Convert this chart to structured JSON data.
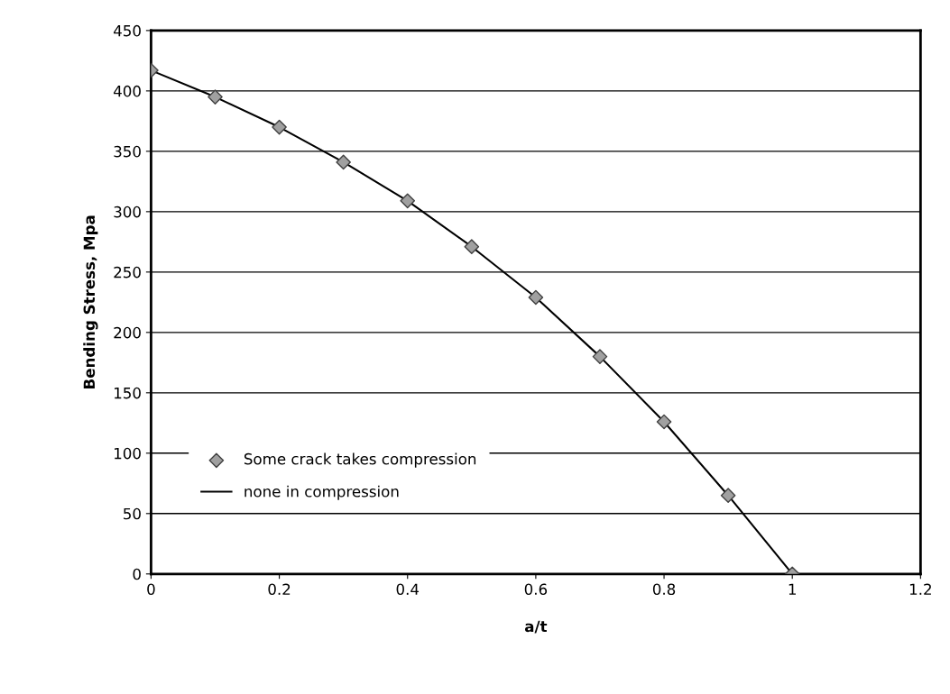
{
  "chart_data": {
    "type": "line",
    "xlabel": "a/t",
    "ylabel": "Bending Stress, Mpa",
    "x": [
      0,
      0.1,
      0.2,
      0.3,
      0.4,
      0.5,
      0.6,
      0.7,
      0.8,
      0.9,
      1
    ],
    "series": [
      {
        "name": "Some crack takes compression",
        "type": "scatter",
        "marker": "diamond",
        "color": "#a0a0a0",
        "values": [
          417,
          395,
          370,
          341,
          309,
          271,
          229,
          180,
          126,
          65,
          0
        ]
      },
      {
        "name": "none in compression",
        "marker": "none",
        "color": "#000000",
        "values": [
          417,
          395,
          370,
          341,
          309,
          271,
          229,
          180,
          126,
          65,
          0
        ]
      }
    ],
    "xlim": [
      0,
      1.2
    ],
    "xticks": [
      0,
      0.2,
      0.4,
      0.6,
      0.8,
      1,
      1.2
    ],
    "ylim": [
      0,
      450
    ],
    "yticks": [
      0,
      50,
      100,
      150,
      200,
      250,
      300,
      350,
      400,
      450
    ],
    "grid": "y",
    "legend": "bottom left"
  }
}
